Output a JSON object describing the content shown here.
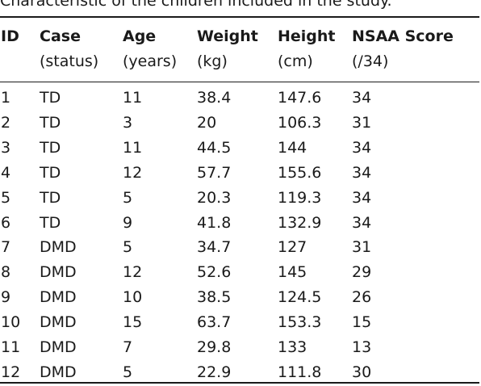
{
  "caption": "Characteristic of the children included in the study.",
  "headers": [
    {
      "line1": "ID",
      "line2": ""
    },
    {
      "line1": "Case",
      "line2": "(status)"
    },
    {
      "line1": "Age",
      "line2": "(years)"
    },
    {
      "line1": "Weight",
      "line2": "(kg)"
    },
    {
      "line1": "Height",
      "line2": "(cm)"
    },
    {
      "line1": "NSAA Score",
      "line2": "(/34)"
    }
  ],
  "rows": [
    [
      "1",
      "TD",
      "11",
      "38.4",
      "147.6",
      "34"
    ],
    [
      "2",
      "TD",
      "3",
      "20",
      "106.3",
      "31"
    ],
    [
      "3",
      "TD",
      "11",
      "44.5",
      "144",
      "34"
    ],
    [
      "4",
      "TD",
      "12",
      "57.7",
      "155.6",
      "34"
    ],
    [
      "5",
      "TD",
      "5",
      "20.3",
      "119.3",
      "34"
    ],
    [
      "6",
      "TD",
      "9",
      "41.8",
      "132.9",
      "34"
    ],
    [
      "7",
      "DMD",
      "5",
      "34.7",
      "127",
      "31"
    ],
    [
      "8",
      "DMD",
      "12",
      "52.6",
      "145",
      "29"
    ],
    [
      "9",
      "DMD",
      "10",
      "38.5",
      "124.5",
      "26"
    ],
    [
      "10",
      "DMD",
      "15",
      "63.7",
      "153.3",
      "15"
    ],
    [
      "11",
      "DMD",
      "7",
      "29.8",
      "133",
      "13"
    ],
    [
      "12",
      "DMD",
      "5",
      "22.9",
      "111.8",
      "30"
    ]
  ]
}
